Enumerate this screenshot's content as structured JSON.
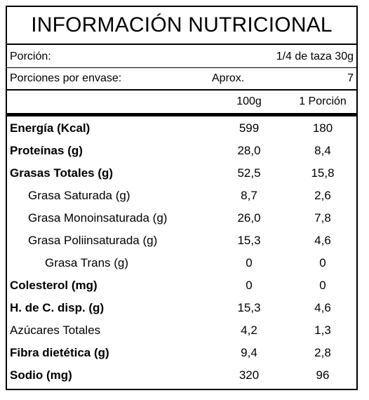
{
  "title": "INFORMACIÓN NUTRICIONAL",
  "serving": {
    "label": "Porción:",
    "value": "1/4 de taza  30g"
  },
  "servings_per_container": {
    "label": "Porciones por envase:",
    "approx": "Aprox.",
    "value": "7"
  },
  "columns": {
    "per_100g": "100g",
    "per_portion": "1 Porción"
  },
  "rows": [
    {
      "name": "Energía (Kcal)",
      "v100": "599",
      "vport": "180"
    },
    {
      "name": "Proteínas (g)",
      "v100": "28,0",
      "vport": "8,4"
    },
    {
      "name": "Grasas Totales (g)",
      "v100": "52,5",
      "vport": "15,8"
    },
    {
      "name": "Grasa Saturada (g)",
      "v100": "8,7",
      "vport": "2,6"
    },
    {
      "name": "Grasa Monoinsaturada (g)",
      "v100": "26,0",
      "vport": "7,8"
    },
    {
      "name": "Grasa Poliinsaturada (g)",
      "v100": "15,3",
      "vport": "4,6"
    },
    {
      "name": "Grasa Trans (g)",
      "v100": "0",
      "vport": "0"
    },
    {
      "name": "Colesterol (mg)",
      "v100": "0",
      "vport": "0"
    },
    {
      "name": "H. de C. disp. (g)",
      "v100": "15,3",
      "vport": "4,6"
    },
    {
      "name": "Azúcares Totales",
      "v100": "4,2",
      "vport": "1,3"
    },
    {
      "name": "Fibra dietética (g)",
      "v100": "9,4",
      "vport": "2,8"
    },
    {
      "name": "Sodio (mg)",
      "v100": "320",
      "vport": "96"
    }
  ]
}
